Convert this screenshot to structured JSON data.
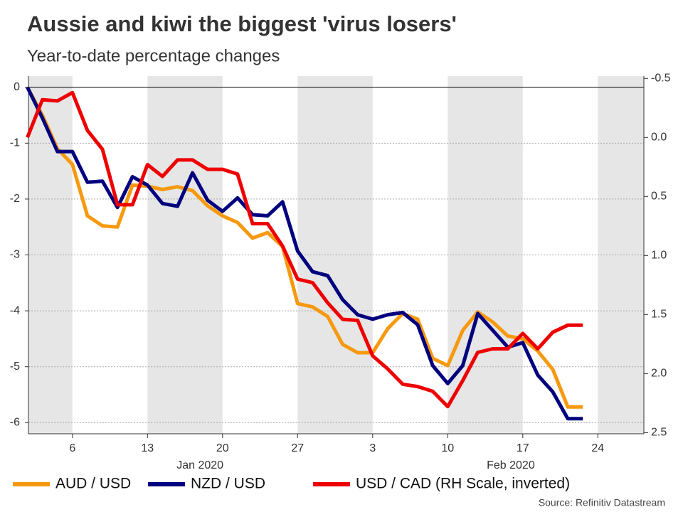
{
  "chart_data": {
    "type": "line",
    "title": "Aussie and kiwi the biggest 'virus losers'",
    "subtitle": "Year-to-date percentage changes",
    "source": "Source: Refinitiv Datastream",
    "month_labels": [
      "Jan 2020",
      "Feb 2020"
    ],
    "categories": [
      null,
      null,
      null,
      "6",
      null,
      null,
      null,
      null,
      "13",
      null,
      null,
      null,
      null,
      "20",
      null,
      null,
      null,
      null,
      "27",
      null,
      null,
      null,
      null,
      "3",
      null,
      null,
      null,
      null,
      "10",
      null,
      null,
      null,
      null,
      "17",
      null,
      null,
      null,
      null,
      "24",
      null,
      null,
      null
    ],
    "series": [
      {
        "name": "AUD / USD",
        "color": "#f7990f",
        "values": [
          0,
          -0.5,
          -1.1,
          -1.38,
          -2.3,
          -2.48,
          -2.5,
          -1.75,
          -1.77,
          -1.83,
          -1.78,
          -1.85,
          -2.12,
          -2.3,
          -2.42,
          -2.7,
          -2.6,
          -2.85,
          -3.87,
          -3.93,
          -4.1,
          -4.6,
          -4.75,
          -4.75,
          -4.32,
          -4.05,
          -4.15,
          -4.85,
          -4.98,
          -4.35,
          -4.02,
          -4.2,
          -4.45,
          -4.5,
          -4.72,
          -5.05,
          -5.72,
          -5.72,
          null,
          null,
          null,
          null
        ]
      },
      {
        "name": "NZD / USD",
        "color": "#00007f",
        "values": [
          0,
          -0.55,
          -1.15,
          -1.15,
          -1.7,
          -1.68,
          -2.15,
          -1.6,
          -1.75,
          -2.08,
          -2.13,
          -1.53,
          -2.02,
          -2.22,
          -1.98,
          -2.28,
          -2.3,
          -2.05,
          -2.93,
          -3.3,
          -3.37,
          -3.8,
          -4.07,
          -4.15,
          -4.07,
          -4.03,
          -4.25,
          -4.98,
          -5.3,
          -4.98,
          -4.05,
          -4.35,
          -4.65,
          -4.57,
          -5.15,
          -5.45,
          -5.93,
          -5.93,
          null,
          null,
          null,
          null
        ]
      },
      {
        "name": "USD / CAD (RH Scale, inverted)",
        "color": "#ee0000",
        "axis": "y2",
        "values": [
          0.0,
          -0.32,
          -0.31,
          -0.38,
          -0.06,
          0.1,
          0.57,
          0.57,
          0.23,
          0.33,
          0.19,
          0.19,
          0.27,
          0.27,
          0.31,
          0.73,
          0.73,
          0.92,
          1.2,
          1.23,
          1.4,
          1.54,
          1.55,
          1.85,
          1.96,
          2.09,
          2.11,
          2.15,
          2.28,
          2.06,
          1.82,
          1.79,
          1.79,
          1.66,
          1.79,
          1.65,
          1.59,
          1.59,
          null,
          null,
          null,
          null
        ]
      }
    ],
    "ylim": [
      -6.2,
      0.2
    ],
    "yticks": [
      0,
      -1,
      -2,
      -3,
      -4,
      -5,
      -6
    ],
    "y2lim": [
      -0.52,
      2.51
    ],
    "y2_inverted": true,
    "y2ticks": [
      -0.5,
      {
        "value": 0.0,
        "label": "0.0"
      },
      0.5,
      {
        "value": 1.0,
        "label": "1.0"
      },
      1.5,
      {
        "value": 2.0,
        "label": "2.0"
      },
      2.5
    ],
    "grid": true
  }
}
